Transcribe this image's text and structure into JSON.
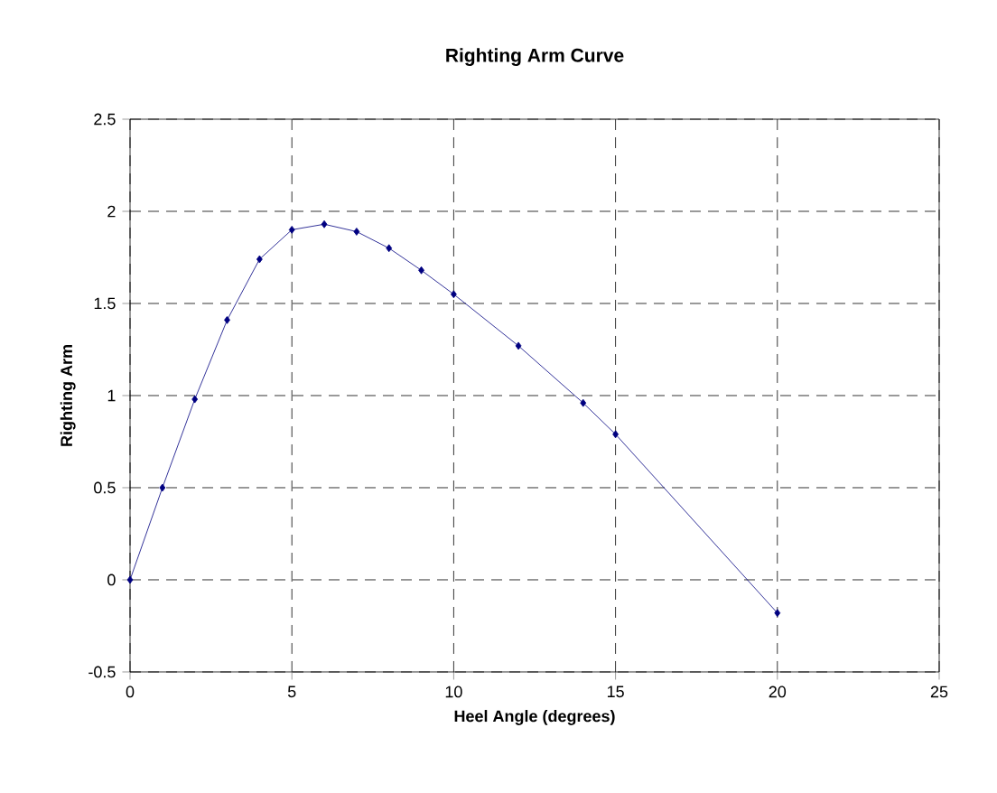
{
  "chart_data": {
    "type": "line",
    "title": "Righting Arm Curve",
    "xlabel": "Heel Angle (degrees)",
    "ylabel": "Righting Arm",
    "x": [
      0,
      1,
      2,
      3,
      4,
      5,
      6,
      7,
      8,
      9,
      10,
      12,
      14,
      15,
      20
    ],
    "values": [
      0,
      0.5,
      0.98,
      1.41,
      1.74,
      1.9,
      1.93,
      1.89,
      1.8,
      1.68,
      1.55,
      1.27,
      0.96,
      0.79,
      -0.18
    ],
    "color": "#000080",
    "marker": "diamond",
    "line_style": "solid",
    "grid": true,
    "xlim": [
      0,
      25
    ],
    "xticks": [
      0,
      5,
      10,
      15,
      20,
      25
    ],
    "ylim": [
      -0.5,
      2.5
    ],
    "yticks": [
      -0.5,
      0,
      0.5,
      1,
      1.5,
      2,
      2.5
    ]
  }
}
